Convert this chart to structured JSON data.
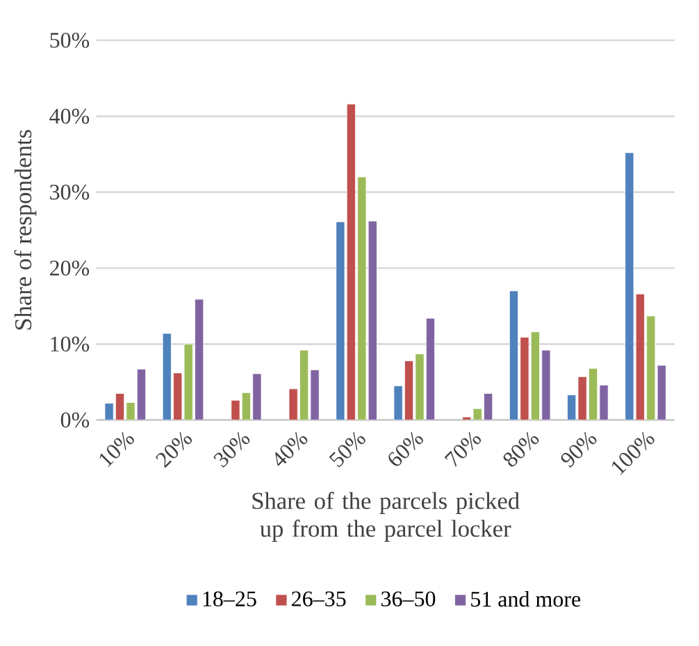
{
  "chart_data": {
    "type": "bar",
    "xlabel": "Share of the parcels picked up from the parcel locker",
    "ylabel": "Share of respondents",
    "categories": [
      "10%",
      "20%",
      "30%",
      "40%",
      "50%",
      "60%",
      "70%",
      "80%",
      "90%",
      "100%"
    ],
    "series": [
      {
        "name": "18–25",
        "color": "#4f81bd",
        "values": [
          2.2,
          11.4,
          null,
          null,
          26.1,
          4.5,
          null,
          17.0,
          3.3,
          35.2
        ]
      },
      {
        "name": "26–35",
        "color": "#c0504d",
        "values": [
          3.5,
          6.2,
          2.6,
          4.1,
          41.6,
          7.8,
          0.4,
          10.9,
          5.7,
          16.6
        ]
      },
      {
        "name": "36–50",
        "color": "#9bbb59",
        "values": [
          2.3,
          10.0,
          3.6,
          9.2,
          32.0,
          8.7,
          1.5,
          11.6,
          6.8,
          13.7
        ]
      },
      {
        "name": "51 and more",
        "color": "#8064a2",
        "values": [
          6.7,
          15.9,
          6.1,
          6.6,
          26.2,
          13.4,
          3.5,
          9.2,
          4.6,
          7.2
        ]
      }
    ],
    "ylim": [
      0,
      50
    ],
    "yticks": [
      {
        "value": 0,
        "label": "0%"
      },
      {
        "value": 10,
        "label": "10%"
      },
      {
        "value": 20,
        "label": "20%"
      },
      {
        "value": 30,
        "label": "30%"
      },
      {
        "value": 40,
        "label": "40%"
      },
      {
        "value": 50,
        "label": "50%"
      }
    ],
    "grid": "y",
    "legend": "bottom"
  }
}
